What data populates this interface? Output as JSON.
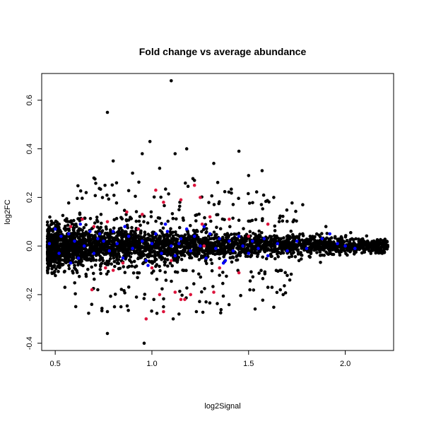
{
  "chart_data": {
    "type": "scatter",
    "title": "Fold change vs average abundance",
    "xlabel": "log2Signal",
    "ylabel": "log2FC",
    "xlim": [
      0.43,
      2.25
    ],
    "ylim": [
      -0.43,
      0.71
    ],
    "x_ticks": [
      0.5,
      1.0,
      1.5,
      2.0
    ],
    "x_tick_labels": [
      "0.5",
      "1.0",
      "1.5",
      "2.0"
    ],
    "y_ticks": [
      -0.4,
      -0.2,
      0.0,
      0.2,
      0.4,
      0.6
    ],
    "y_tick_labels": [
      "-0.4",
      "-0.2",
      "0.0",
      "0.2",
      "0.4",
      "0.6"
    ],
    "grid": false,
    "legend": "none",
    "colors": {
      "background": "#000000",
      "highlight": "#0000ff",
      "significant": "#dc143c"
    },
    "series": [
      {
        "role": "background",
        "color": "#000000",
        "outliers": [
          [
            0.77,
            0.55
          ],
          [
            1.1,
            0.68
          ],
          [
            0.99,
            0.43
          ],
          [
            1.18,
            0.4
          ],
          [
            0.95,
            0.38
          ],
          [
            1.45,
            0.39
          ],
          [
            1.12,
            0.38
          ],
          [
            0.8,
            0.35
          ],
          [
            1.32,
            0.34
          ],
          [
            1.04,
            0.32
          ],
          [
            1.57,
            0.31
          ],
          [
            0.9,
            0.3
          ],
          [
            1.5,
            0.29
          ],
          [
            0.7,
            0.28
          ],
          [
            1.22,
            0.27
          ],
          [
            0.66,
            0.22
          ],
          [
            1.63,
            0.2
          ],
          [
            1.78,
            0.17
          ],
          [
            0.96,
            -0.4
          ],
          [
            0.77,
            -0.36
          ],
          [
            0.77,
            -0.27
          ],
          [
            0.84,
            -0.25
          ],
          [
            1.11,
            -0.3
          ],
          [
            1.06,
            -0.25
          ],
          [
            1.23,
            -0.27
          ],
          [
            1.14,
            -0.28
          ],
          [
            0.92,
            -0.21
          ],
          [
            1.28,
            -0.23
          ],
          [
            1.01,
            -0.22
          ],
          [
            0.72,
            -0.18
          ],
          [
            1.6,
            -0.17
          ],
          [
            0.55,
            -0.17
          ],
          [
            1.9,
            0.08
          ],
          [
            2.07,
            0.02
          ],
          [
            2.2,
            0.0
          ],
          [
            2.15,
            0.01
          ],
          [
            2.12,
            -0.01
          ]
        ],
        "cloud": {
          "x_range": [
            0.46,
            2.22
          ],
          "center_y": 0.0,
          "max_spread": 0.1,
          "count": 3000
        }
      },
      {
        "role": "highlight",
        "color": "#0000ff",
        "points": [
          [
            0.5,
            0.07
          ],
          [
            0.53,
            0.04
          ],
          [
            0.52,
            -0.03
          ],
          [
            0.57,
            0.05
          ],
          [
            0.6,
            0.02
          ],
          [
            0.62,
            -0.05
          ],
          [
            0.65,
            0.0
          ],
          [
            0.68,
            0.06
          ],
          [
            0.7,
            -0.03
          ],
          [
            0.73,
            0.05
          ],
          [
            0.75,
            0.02
          ],
          [
            0.78,
            -0.02
          ],
          [
            0.8,
            0.06
          ],
          [
            0.82,
            0.01
          ],
          [
            0.85,
            -0.05
          ],
          [
            0.88,
            0.04
          ],
          [
            0.9,
            -0.01
          ],
          [
            0.93,
            0.07
          ],
          [
            0.95,
            0.02
          ],
          [
            0.97,
            -0.06
          ],
          [
            1.0,
            0.01
          ],
          [
            1.02,
            0.05
          ],
          [
            1.05,
            -0.03
          ],
          [
            1.08,
            0.06
          ],
          [
            1.1,
            0.0
          ],
          [
            1.12,
            -0.04
          ],
          [
            1.15,
            0.03
          ],
          [
            1.18,
            0.07
          ],
          [
            1.2,
            -0.02
          ],
          [
            1.22,
            0.04
          ],
          [
            1.25,
            0.0
          ],
          [
            1.28,
            -0.05
          ],
          [
            1.3,
            0.05
          ],
          [
            1.33,
            -0.01
          ],
          [
            1.35,
            0.03
          ],
          [
            1.38,
            -0.06
          ],
          [
            1.4,
            0.02
          ],
          [
            1.42,
            -0.02
          ],
          [
            1.45,
            0.04
          ],
          [
            1.47,
            0.0
          ],
          [
            1.5,
            -0.03
          ],
          [
            1.52,
            0.02
          ],
          [
            1.55,
            -0.01
          ],
          [
            1.58,
            0.03
          ],
          [
            1.6,
            -0.04
          ],
          [
            1.65,
            0.01
          ],
          [
            1.7,
            -0.02
          ],
          [
            1.75,
            0.02
          ],
          [
            1.8,
            -0.01
          ],
          [
            1.88,
            0.03
          ],
          [
            1.92,
            0.05
          ],
          [
            1.96,
            0.01
          ],
          [
            2.0,
            0.0
          ],
          [
            2.05,
            -0.01
          ],
          [
            0.63,
            0.09
          ],
          [
            0.86,
            0.08
          ],
          [
            1.07,
            0.09
          ],
          [
            1.27,
            0.08
          ],
          [
            0.58,
            -0.07
          ],
          [
            0.98,
            -0.08
          ],
          [
            1.37,
            -0.07
          ],
          [
            0.47,
            0.01
          ],
          [
            0.72,
            0.03
          ],
          [
            1.14,
            0.01
          ]
        ]
      },
      {
        "role": "significant",
        "color": "#dc143c",
        "points": [
          [
            0.97,
            -0.3
          ],
          [
            1.06,
            -0.27
          ],
          [
            1.15,
            -0.22
          ],
          [
            1.17,
            -0.22
          ],
          [
            1.04,
            -0.2
          ],
          [
            1.12,
            -0.19
          ],
          [
            1.32,
            -0.19
          ],
          [
            1.2,
            -0.2
          ],
          [
            1.45,
            -0.11
          ],
          [
            1.35,
            -0.09
          ],
          [
            0.69,
            -0.18
          ],
          [
            0.8,
            -0.1
          ],
          [
            0.76,
            -0.09
          ],
          [
            1.0,
            -0.09
          ],
          [
            1.22,
            0.25
          ],
          [
            1.02,
            0.23
          ],
          [
            1.06,
            0.18
          ],
          [
            1.15,
            0.19
          ],
          [
            1.3,
            0.12
          ],
          [
            0.87,
            0.14
          ],
          [
            0.77,
            0.1
          ],
          [
            0.64,
            0.11
          ],
          [
            1.4,
            0.11
          ],
          [
            0.58,
            0.08
          ],
          [
            1.6,
            0.09
          ],
          [
            1.26,
            0.09
          ],
          [
            0.93,
            0.07
          ],
          [
            1.1,
            -0.06
          ],
          [
            0.85,
            -0.07
          ],
          [
            1.27,
            0.0
          ],
          [
            1.5,
            0.04
          ],
          [
            0.95,
            0.13
          ],
          [
            0.7,
            0.08
          ],
          [
            1.25,
            0.2
          ]
        ]
      }
    ]
  }
}
